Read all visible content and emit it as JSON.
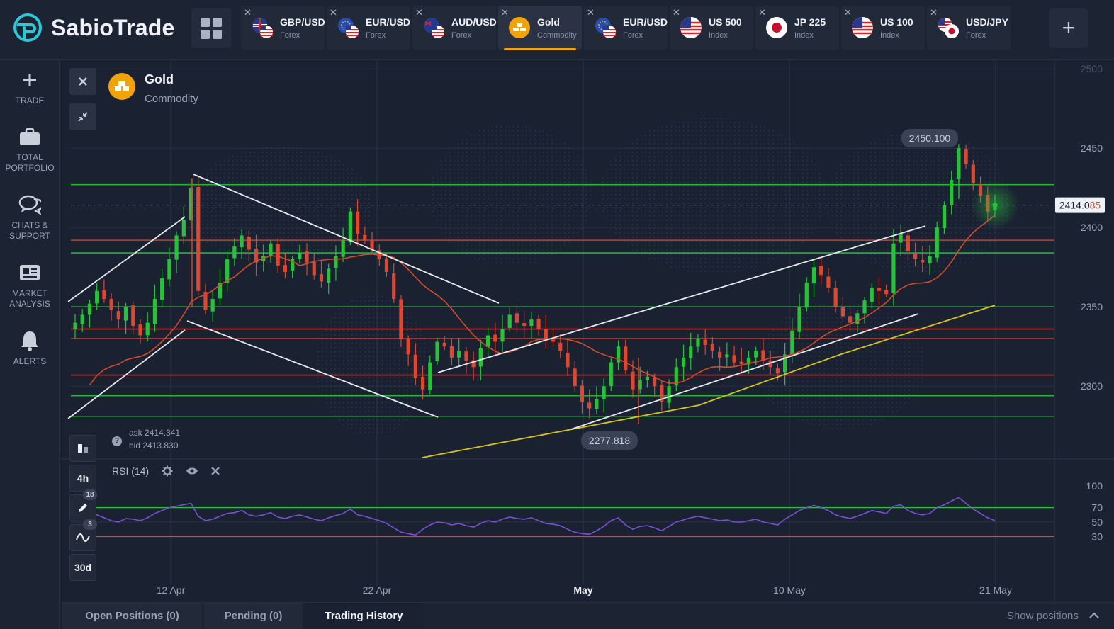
{
  "app": {
    "name": "SabioTrade"
  },
  "tabs": [
    {
      "symbol": "GBP/USD",
      "type": "Forex",
      "flag": "uk-us",
      "active": false
    },
    {
      "symbol": "EUR/USD",
      "type": "Forex",
      "flag": "eu-us",
      "active": false
    },
    {
      "symbol": "AUD/USD",
      "type": "Forex",
      "flag": "au-us",
      "active": false
    },
    {
      "symbol": "Gold",
      "type": "Commodity",
      "flag": "gold",
      "active": true
    },
    {
      "symbol": "EUR/USD",
      "type": "Forex",
      "flag": "eu-us",
      "active": false
    },
    {
      "symbol": "US 500",
      "type": "Index",
      "flag": "us",
      "active": false
    },
    {
      "symbol": "JP 225",
      "type": "Index",
      "flag": "jp",
      "active": false
    },
    {
      "symbol": "US 100",
      "type": "Index",
      "flag": "us",
      "active": false
    },
    {
      "symbol": "USD/JPY",
      "type": "Forex",
      "flag": "us-jp",
      "active": false
    }
  ],
  "sidebar": {
    "items": [
      {
        "label": "TRADE",
        "icon": "plus-icon"
      },
      {
        "label": "TOTAL PORTFOLIO",
        "icon": "briefcase-icon"
      },
      {
        "label": "CHATS & SUPPORT",
        "icon": "chat-icon"
      },
      {
        "label": "MARKET ANALYSIS",
        "icon": "newspaper-icon"
      },
      {
        "label": "ALERTS",
        "icon": "bell-icon"
      }
    ]
  },
  "asset": {
    "name": "Gold",
    "type": "Commodity"
  },
  "quote": {
    "ask": "ask 2414.341",
    "bid": "bid 2413.830"
  },
  "price_axis": {
    "labels": [
      "2500",
      "2450",
      "2400",
      "2350",
      "2300"
    ],
    "current": "2414.085",
    "high_label": "2450.100",
    "low_label": "2277.818"
  },
  "rsi": {
    "label": "RSI (14)",
    "levels": [
      "100",
      "70",
      "50",
      "30"
    ]
  },
  "time_axis": {
    "labels": [
      "12 Apr",
      "22 Apr",
      "May",
      "10 May",
      "21 May"
    ]
  },
  "tools": {
    "timeframe": "4h",
    "draw_count": "18",
    "indicator_count": "3",
    "period": "30d"
  },
  "bottom": {
    "tabs": [
      "Open Positions (0)",
      "Pending (0)",
      "Trading History"
    ],
    "active_tab": "Trading History",
    "show_positions": "Show positions"
  },
  "colors": {
    "accent": "#f0a30a",
    "up": "#27c13a",
    "down": "#e0452e",
    "ma_red": "#d24b2b",
    "ma_yellow": "#d8c21a",
    "rsi": "#7a4fd6",
    "support": "#2fbf3a",
    "resistance": "#d6453a"
  },
  "chart_data": {
    "type": "candlestick",
    "instrument": "Gold",
    "timeframe": "4h",
    "ylim": [
      2255,
      2505
    ],
    "x_ticks": [
      "12 Apr",
      "22 Apr",
      "May",
      "10 May",
      "21 May"
    ],
    "current_price": 2414.085,
    "marked_high": 2450.1,
    "marked_low": 2277.818,
    "horizontal_levels": [
      {
        "price": 2427,
        "color": "green"
      },
      {
        "price": 2392,
        "color": "red"
      },
      {
        "price": 2384,
        "color": "green"
      },
      {
        "price": 2350,
        "color": "green"
      },
      {
        "price": 2336,
        "color": "red"
      },
      {
        "price": 2330,
        "color": "red"
      },
      {
        "price": 2307,
        "color": "red"
      },
      {
        "price": 2294,
        "color": "green"
      },
      {
        "price": 2281,
        "color": "green"
      }
    ],
    "close_series": [
      2340,
      2345,
      2352,
      2360,
      2355,
      2348,
      2342,
      2350,
      2338,
      2332,
      2340,
      2355,
      2368,
      2380,
      2395,
      2405,
      2425,
      2360,
      2348,
      2355,
      2365,
      2380,
      2388,
      2395,
      2386,
      2378,
      2382,
      2390,
      2376,
      2372,
      2380,
      2384,
      2378,
      2370,
      2366,
      2374,
      2382,
      2392,
      2410,
      2396,
      2392,
      2386,
      2380,
      2372,
      2355,
      2330,
      2320,
      2305,
      2298,
      2315,
      2328,
      2325,
      2318,
      2322,
      2316,
      2312,
      2324,
      2332,
      2328,
      2336,
      2345,
      2340,
      2338,
      2342,
      2336,
      2330,
      2328,
      2322,
      2312,
      2300,
      2290,
      2286,
      2292,
      2300,
      2315,
      2325,
      2310,
      2298,
      2304,
      2306,
      2300,
      2290,
      2300,
      2312,
      2318,
      2325,
      2330,
      2326,
      2322,
      2318,
      2320,
      2315,
      2314,
      2318,
      2322,
      2316,
      2312,
      2308,
      2320,
      2335,
      2350,
      2365,
      2375,
      2370,
      2362,
      2350,
      2344,
      2340,
      2346,
      2354,
      2362,
      2360,
      2358,
      2390,
      2396,
      2385,
      2380,
      2378,
      2382,
      2400,
      2414,
      2430,
      2450,
      2440,
      2428,
      2420,
      2410,
      2414
    ],
    "rsi_series": [
      55,
      58,
      62,
      60,
      56,
      52,
      50,
      55,
      54,
      52,
      56,
      62,
      66,
      70,
      72,
      74,
      76,
      58,
      52,
      54,
      58,
      62,
      63,
      66,
      60,
      58,
      60,
      63,
      57,
      55,
      58,
      60,
      57,
      54,
      52,
      56,
      59,
      62,
      68,
      60,
      58,
      55,
      52,
      48,
      42,
      36,
      34,
      32,
      40,
      46,
      50,
      49,
      46,
      48,
      45,
      43,
      48,
      52,
      50,
      54,
      57,
      55,
      54,
      56,
      52,
      48,
      47,
      45,
      40,
      36,
      34,
      33,
      38,
      44,
      52,
      56,
      46,
      40,
      44,
      45,
      42,
      38,
      44,
      50,
      53,
      56,
      58,
      56,
      54,
      52,
      53,
      50,
      50,
      52,
      54,
      50,
      48,
      46,
      54,
      60,
      66,
      70,
      73,
      70,
      66,
      60,
      57,
      55,
      58,
      62,
      66,
      64,
      62,
      72,
      74,
      66,
      62,
      60,
      62,
      70,
      74,
      79,
      84,
      76,
      68,
      62,
      56,
      52
    ]
  }
}
